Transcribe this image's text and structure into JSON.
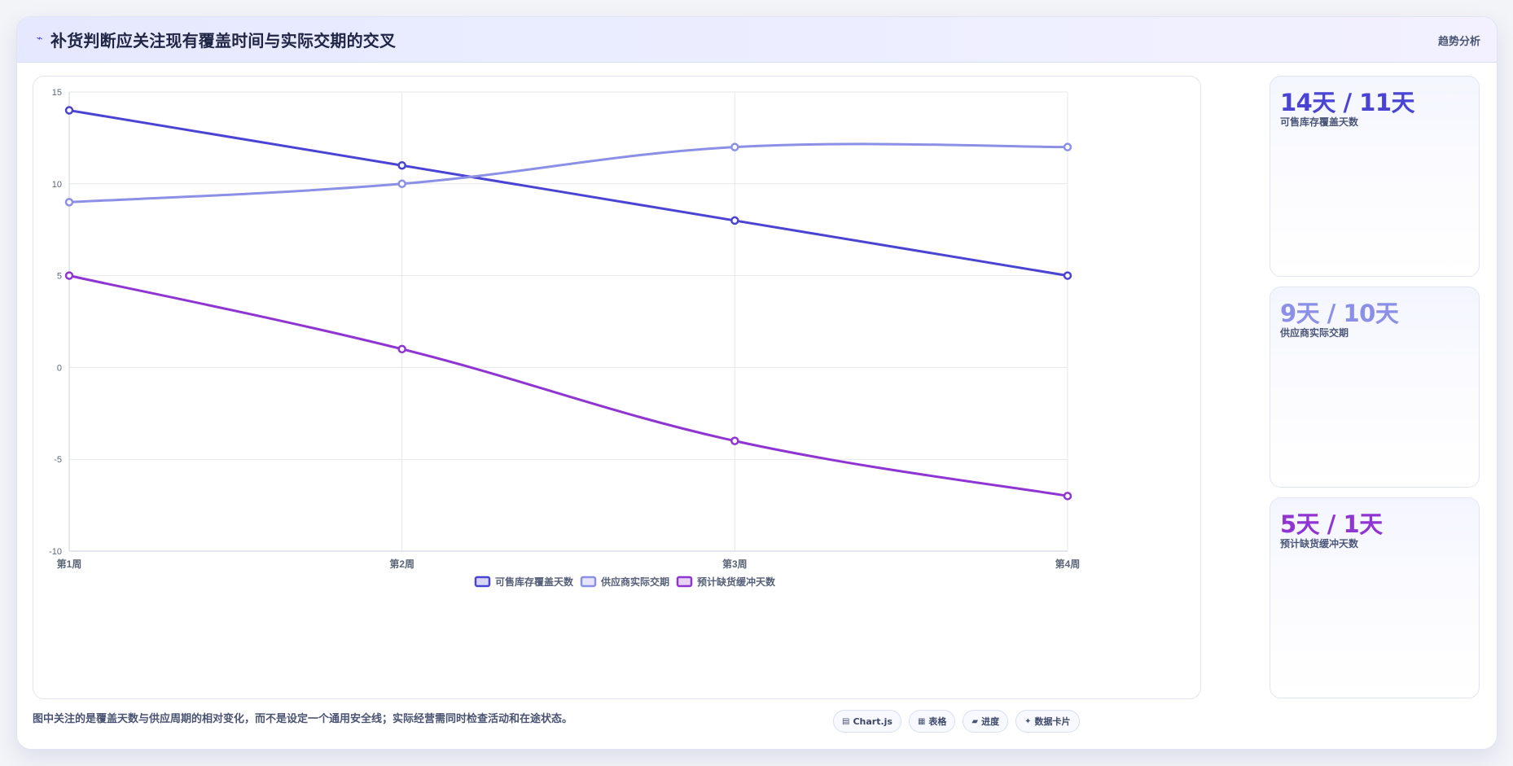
{
  "header": {
    "icon": "line-chart-icon",
    "title": "补货判断应关注现有覆盖时间与实际交期的交叉",
    "tag": "趋势分析"
  },
  "chart_data": {
    "type": "line",
    "categories": [
      "第1周",
      "第2周",
      "第3周",
      "第4周"
    ],
    "series": [
      {
        "name": "可售库存覆盖天数",
        "values": [
          14,
          11,
          8,
          5
        ],
        "color": "#4b43d1"
      },
      {
        "name": "供应商实际交期",
        "values": [
          9,
          10,
          12,
          12
        ],
        "color": "#8b8fe6"
      },
      {
        "name": "预计缺货缓冲天数",
        "values": [
          5,
          1,
          -4,
          -7
        ],
        "color": "#8f35d2"
      }
    ],
    "y_ticks": [
      "15",
      "10",
      "5",
      "0",
      "-5",
      "-10"
    ],
    "ylim": [
      -10,
      15
    ],
    "grid": true,
    "legend": "bottom"
  },
  "stats": [
    {
      "value": "14天 / 11天",
      "label": "可售库存覆盖天数",
      "color": "#4b43d1"
    },
    {
      "value": "9天 / 10天",
      "label": "供应商实际交期",
      "color": "#8b8fe6"
    },
    {
      "value": "5天 / 1天",
      "label": "预计缺货缓冲天数",
      "color": "#8f35d2"
    }
  ],
  "footer": {
    "note": "图中关注的是覆盖天数与供应周期的相对变化，而不是设定一个通用安全线；实际经营需同时检查活动和在途状态。",
    "pills": [
      {
        "icon": "chart-icon",
        "glyph": "▤",
        "label": "Chart.js"
      },
      {
        "icon": "table-icon",
        "glyph": "▦",
        "label": "表格"
      },
      {
        "icon": "progress-icon",
        "glyph": "▰",
        "label": "进度"
      },
      {
        "icon": "card-icon",
        "glyph": "✦",
        "label": "数据卡片"
      }
    ]
  }
}
